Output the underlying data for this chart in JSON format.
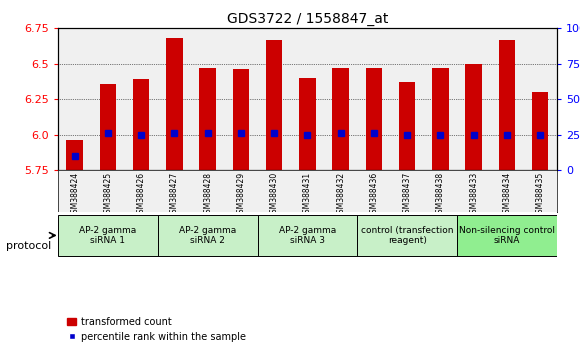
{
  "title": "GDS3722 / 1558847_at",
  "samples": [
    "GSM388424",
    "GSM388425",
    "GSM388426",
    "GSM388427",
    "GSM388428",
    "GSM388429",
    "GSM388430",
    "GSM388431",
    "GSM388432",
    "GSM388436",
    "GSM388437",
    "GSM388438",
    "GSM388433",
    "GSM388434",
    "GSM388435"
  ],
  "transformed_count": [
    5.96,
    6.36,
    6.39,
    6.68,
    6.47,
    6.46,
    6.67,
    6.4,
    6.47,
    6.47,
    6.37,
    6.47,
    6.5,
    6.67,
    6.3
  ],
  "percentile_rank": [
    10,
    26,
    25,
    26,
    26,
    26,
    26,
    25,
    26,
    26,
    25,
    25,
    25,
    25,
    25
  ],
  "ylim_left": [
    5.75,
    6.75
  ],
  "ylim_right": [
    0,
    100
  ],
  "yticks_left": [
    5.75,
    6.0,
    6.25,
    6.5,
    6.75
  ],
  "yticks_right": [
    0,
    25,
    50,
    75,
    100
  ],
  "ytick_labels_right": [
    "0",
    "25",
    "50",
    "75",
    "100%"
  ],
  "bar_color": "#cc0000",
  "dot_color": "#0000cc",
  "bg_color": "#f0f0f0",
  "protocol_groups": [
    {
      "label": "AP-2 gamma\nsiRNA 1",
      "indices": [
        0,
        1,
        2
      ],
      "color": "#c8f0c8"
    },
    {
      "label": "AP-2 gamma\nsiRNA 2",
      "indices": [
        3,
        4,
        5
      ],
      "color": "#c8f0c8"
    },
    {
      "label": "AP-2 gamma\nsiRNA 3",
      "indices": [
        6,
        7,
        8
      ],
      "color": "#c8f0c8"
    },
    {
      "label": "control (transfection\nreagent)",
      "indices": [
        9,
        10,
        11
      ],
      "color": "#c8f0c8"
    },
    {
      "label": "Non-silencing control\nsiRNA",
      "indices": [
        12,
        13,
        14
      ],
      "color": "#90ee90"
    }
  ],
  "grid_color": "#000000",
  "bar_width": 0.5
}
